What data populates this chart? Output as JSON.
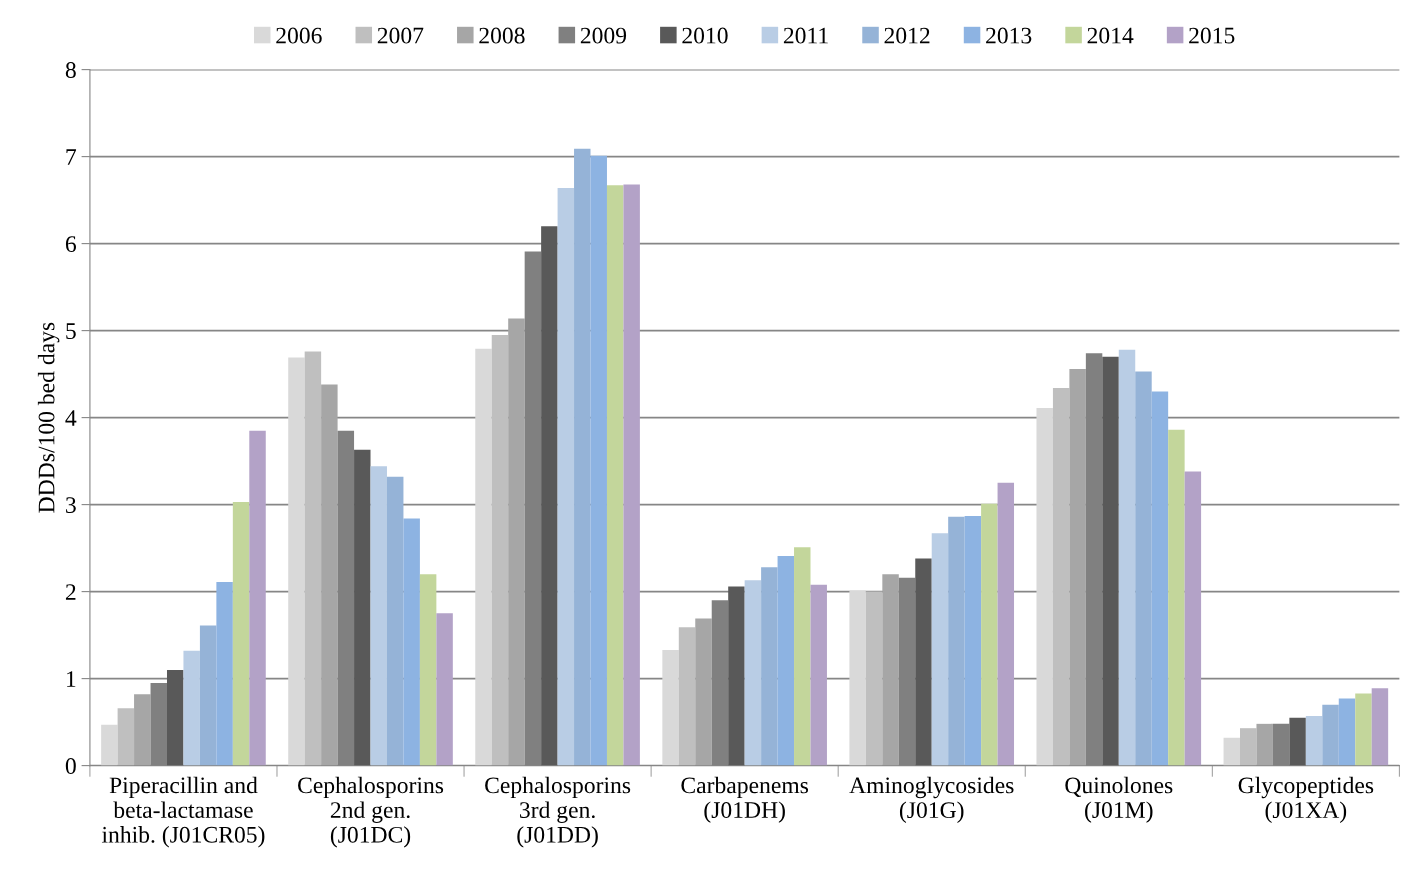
{
  "chart_data": {
    "type": "bar",
    "ylabel": "DDDs/100 bed days",
    "categories": [
      "Piperacillin and\nbeta-lactamase\ninhib. (J01CR05)",
      "Cephalosporins\n2nd gen.\n(J01DC)",
      "Cephalosporins\n3rd gen.\n(J01DD)",
      "Carbapenems\n(J01DH)",
      "Aminoglycosides\n(J01G)",
      "Quinolones\n(J01M)",
      "Glycopeptides\n(J01XA)"
    ],
    "series": [
      {
        "name": "2006",
        "color": "#d9d9d9",
        "values": [
          0.47,
          4.69,
          4.79,
          1.33,
          2.01,
          4.11,
          0.32
        ]
      },
      {
        "name": "2007",
        "color": "#bfbfbf",
        "values": [
          0.66,
          4.76,
          4.95,
          1.59,
          2.0,
          4.34,
          0.43
        ]
      },
      {
        "name": "2008",
        "color": "#a6a6a6",
        "values": [
          0.82,
          4.38,
          5.14,
          1.69,
          2.2,
          4.56,
          0.48
        ]
      },
      {
        "name": "2009",
        "color": "#808080",
        "values": [
          0.95,
          3.85,
          5.91,
          1.9,
          2.16,
          4.74,
          0.48
        ]
      },
      {
        "name": "2010",
        "color": "#595959",
        "values": [
          1.1,
          3.63,
          6.2,
          2.06,
          2.38,
          4.7,
          0.55
        ]
      },
      {
        "name": "2011",
        "color": "#b9cde5",
        "values": [
          1.32,
          3.44,
          6.64,
          2.13,
          2.67,
          4.78,
          0.57
        ]
      },
      {
        "name": "2012",
        "color": "#95b3d7",
        "values": [
          1.61,
          3.32,
          7.09,
          2.28,
          2.86,
          4.53,
          0.7
        ]
      },
      {
        "name": "2013",
        "color": "#8db3e2",
        "values": [
          2.11,
          2.84,
          7.01,
          2.41,
          2.87,
          4.3,
          0.77
        ]
      },
      {
        "name": "2014",
        "color": "#c3d69b",
        "values": [
          3.03,
          2.2,
          6.67,
          2.51,
          3.01,
          3.86,
          0.83
        ]
      },
      {
        "name": "2015",
        "color": "#b3a2c7",
        "values": [
          3.85,
          1.75,
          6.68,
          2.08,
          3.25,
          3.38,
          0.89
        ]
      }
    ],
    "ylim": [
      0,
      8
    ],
    "yticks": [
      0,
      1,
      2,
      3,
      4,
      5,
      6,
      7,
      8
    ],
    "grid": "y",
    "legend": "top"
  }
}
